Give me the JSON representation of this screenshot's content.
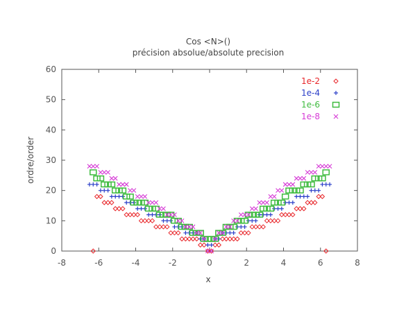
{
  "chart_data": {
    "type": "scatter",
    "title": "Cos <N>()",
    "subtitle": "précision absolue/absolute precision",
    "xlabel": "x",
    "ylabel": "ordre/order",
    "xlim": [
      -8,
      8
    ],
    "ylim": [
      0,
      60
    ],
    "xticks": [
      -8,
      -6,
      -4,
      -2,
      0,
      2,
      4,
      6,
      8
    ],
    "yticks": [
      0,
      10,
      20,
      30,
      40,
      50,
      60
    ],
    "grid": false,
    "legend_position": "top-right",
    "series": [
      {
        "name": "1e-2",
        "color": "#e8262a",
        "marker": "diamond",
        "points": [
          [
            -6.3,
            0
          ],
          [
            -6.1,
            18
          ],
          [
            -5.9,
            18
          ],
          [
            -5.7,
            16
          ],
          [
            -5.5,
            16
          ],
          [
            -5.3,
            16
          ],
          [
            -5.1,
            14
          ],
          [
            -4.9,
            14
          ],
          [
            -4.7,
            14
          ],
          [
            -4.5,
            12
          ],
          [
            -4.3,
            12
          ],
          [
            -4.1,
            12
          ],
          [
            -3.9,
            12
          ],
          [
            -3.7,
            10
          ],
          [
            -3.5,
            10
          ],
          [
            -3.3,
            10
          ],
          [
            -3.1,
            10
          ],
          [
            -2.9,
            8
          ],
          [
            -2.7,
            8
          ],
          [
            -2.5,
            8
          ],
          [
            -2.3,
            8
          ],
          [
            -2.1,
            6
          ],
          [
            -1.9,
            6
          ],
          [
            -1.7,
            6
          ],
          [
            -1.5,
            4
          ],
          [
            -1.3,
            4
          ],
          [
            -1.1,
            4
          ],
          [
            -0.9,
            4
          ],
          [
            -0.7,
            4
          ],
          [
            -0.5,
            2
          ],
          [
            -0.3,
            2
          ],
          [
            -0.1,
            0
          ],
          [
            0.1,
            0
          ],
          [
            0.3,
            2
          ],
          [
            0.5,
            2
          ],
          [
            0.7,
            4
          ],
          [
            0.9,
            4
          ],
          [
            1.1,
            4
          ],
          [
            1.3,
            4
          ],
          [
            1.5,
            4
          ],
          [
            1.7,
            6
          ],
          [
            1.9,
            6
          ],
          [
            2.1,
            6
          ],
          [
            2.3,
            8
          ],
          [
            2.5,
            8
          ],
          [
            2.7,
            8
          ],
          [
            2.9,
            8
          ],
          [
            3.1,
            10
          ],
          [
            3.3,
            10
          ],
          [
            3.5,
            10
          ],
          [
            3.7,
            10
          ],
          [
            3.9,
            12
          ],
          [
            4.1,
            12
          ],
          [
            4.3,
            12
          ],
          [
            4.5,
            12
          ],
          [
            4.7,
            14
          ],
          [
            4.9,
            14
          ],
          [
            5.1,
            14
          ],
          [
            5.3,
            16
          ],
          [
            5.5,
            16
          ],
          [
            5.7,
            16
          ],
          [
            5.9,
            18
          ],
          [
            6.1,
            18
          ],
          [
            6.3,
            0
          ]
        ]
      },
      {
        "name": "1e-4",
        "color": "#2a3ec8",
        "marker": "plus",
        "points": [
          [
            -6.5,
            22
          ],
          [
            -6.3,
            22
          ],
          [
            -6.1,
            22
          ],
          [
            -5.9,
            20
          ],
          [
            -5.7,
            20
          ],
          [
            -5.5,
            20
          ],
          [
            -5.3,
            18
          ],
          [
            -5.1,
            18
          ],
          [
            -4.9,
            18
          ],
          [
            -4.7,
            18
          ],
          [
            -4.5,
            16
          ],
          [
            -4.3,
            16
          ],
          [
            -4.1,
            16
          ],
          [
            -3.9,
            14
          ],
          [
            -3.7,
            14
          ],
          [
            -3.5,
            14
          ],
          [
            -3.3,
            12
          ],
          [
            -3.1,
            12
          ],
          [
            -2.9,
            12
          ],
          [
            -2.7,
            12
          ],
          [
            -2.5,
            10
          ],
          [
            -2.3,
            10
          ],
          [
            -2.1,
            10
          ],
          [
            -1.9,
            8
          ],
          [
            -1.7,
            8
          ],
          [
            -1.5,
            8
          ],
          [
            -1.3,
            6
          ],
          [
            -1.1,
            6
          ],
          [
            -0.9,
            6
          ],
          [
            -0.7,
            6
          ],
          [
            -0.5,
            4
          ],
          [
            -0.3,
            4
          ],
          [
            -0.1,
            2
          ],
          [
            0.1,
            2
          ],
          [
            0.3,
            4
          ],
          [
            0.5,
            4
          ],
          [
            0.7,
            6
          ],
          [
            0.9,
            6
          ],
          [
            1.1,
            6
          ],
          [
            1.3,
            6
          ],
          [
            1.5,
            8
          ],
          [
            1.7,
            8
          ],
          [
            1.9,
            8
          ],
          [
            2.1,
            10
          ],
          [
            2.3,
            10
          ],
          [
            2.5,
            10
          ],
          [
            2.7,
            12
          ],
          [
            2.9,
            12
          ],
          [
            3.1,
            12
          ],
          [
            3.3,
            12
          ],
          [
            3.5,
            14
          ],
          [
            3.7,
            14
          ],
          [
            3.9,
            14
          ],
          [
            4.1,
            16
          ],
          [
            4.3,
            16
          ],
          [
            4.5,
            16
          ],
          [
            4.7,
            18
          ],
          [
            4.9,
            18
          ],
          [
            5.1,
            18
          ],
          [
            5.3,
            18
          ],
          [
            5.5,
            20
          ],
          [
            5.7,
            20
          ],
          [
            5.9,
            20
          ],
          [
            6.1,
            22
          ],
          [
            6.3,
            22
          ],
          [
            6.5,
            22
          ]
        ]
      },
      {
        "name": "1e-6",
        "color": "#3fbb3f",
        "marker": "square",
        "points": [
          [
            -6.3,
            26
          ],
          [
            -6.1,
            24
          ],
          [
            -5.9,
            24
          ],
          [
            -5.7,
            22
          ],
          [
            -5.5,
            22
          ],
          [
            -5.3,
            22
          ],
          [
            -5.1,
            20
          ],
          [
            -4.9,
            20
          ],
          [
            -4.7,
            20
          ],
          [
            -4.5,
            18
          ],
          [
            -4.3,
            18
          ],
          [
            -4.1,
            16
          ],
          [
            -3.9,
            16
          ],
          [
            -3.7,
            16
          ],
          [
            -3.5,
            16
          ],
          [
            -3.3,
            14
          ],
          [
            -3.1,
            14
          ],
          [
            -2.9,
            14
          ],
          [
            -2.7,
            12
          ],
          [
            -2.5,
            12
          ],
          [
            -2.3,
            12
          ],
          [
            -2.1,
            12
          ],
          [
            -1.9,
            10
          ],
          [
            -1.7,
            10
          ],
          [
            -1.5,
            8
          ],
          [
            -1.3,
            8
          ],
          [
            -1.1,
            8
          ],
          [
            -0.9,
            6
          ],
          [
            -0.7,
            6
          ],
          [
            -0.5,
            6
          ],
          [
            -0.3,
            4
          ],
          [
            -0.1,
            4
          ],
          [
            0.1,
            4
          ],
          [
            0.3,
            4
          ],
          [
            0.5,
            6
          ],
          [
            0.7,
            6
          ],
          [
            0.9,
            8
          ],
          [
            1.1,
            8
          ],
          [
            1.3,
            8
          ],
          [
            1.5,
            10
          ],
          [
            1.7,
            10
          ],
          [
            1.9,
            10
          ],
          [
            2.1,
            12
          ],
          [
            2.3,
            12
          ],
          [
            2.5,
            12
          ],
          [
            2.7,
            12
          ],
          [
            2.9,
            14
          ],
          [
            3.1,
            14
          ],
          [
            3.3,
            14
          ],
          [
            3.5,
            16
          ],
          [
            3.7,
            16
          ],
          [
            3.9,
            16
          ],
          [
            4.1,
            18
          ],
          [
            4.3,
            20
          ],
          [
            4.5,
            20
          ],
          [
            4.7,
            20
          ],
          [
            4.9,
            20
          ],
          [
            5.1,
            22
          ],
          [
            5.3,
            22
          ],
          [
            5.5,
            22
          ],
          [
            5.7,
            24
          ],
          [
            5.9,
            24
          ],
          [
            6.1,
            24
          ],
          [
            6.3,
            26
          ]
        ]
      },
      {
        "name": "1e-8",
        "color": "#d63ad6",
        "marker": "cross",
        "points": [
          [
            -6.5,
            28
          ],
          [
            -6.3,
            28
          ],
          [
            -6.1,
            28
          ],
          [
            -5.9,
            26
          ],
          [
            -5.7,
            26
          ],
          [
            -5.5,
            26
          ],
          [
            -5.3,
            24
          ],
          [
            -5.1,
            24
          ],
          [
            -4.9,
            22
          ],
          [
            -4.7,
            22
          ],
          [
            -4.5,
            22
          ],
          [
            -4.3,
            20
          ],
          [
            -4.1,
            20
          ],
          [
            -3.9,
            18
          ],
          [
            -3.7,
            18
          ],
          [
            -3.5,
            18
          ],
          [
            -3.3,
            16
          ],
          [
            -3.1,
            16
          ],
          [
            -2.9,
            16
          ],
          [
            -2.7,
            14
          ],
          [
            -2.5,
            14
          ],
          [
            -2.3,
            12
          ],
          [
            -2.1,
            12
          ],
          [
            -1.9,
            12
          ],
          [
            -1.7,
            10
          ],
          [
            -1.5,
            10
          ],
          [
            -1.3,
            8
          ],
          [
            -1.1,
            8
          ],
          [
            -0.9,
            8
          ],
          [
            -0.7,
            6
          ],
          [
            -0.5,
            6
          ],
          [
            -0.3,
            4
          ],
          [
            -0.1,
            0
          ],
          [
            0.1,
            0
          ],
          [
            0.3,
            4
          ],
          [
            0.5,
            6
          ],
          [
            0.7,
            6
          ],
          [
            0.9,
            8
          ],
          [
            1.1,
            8
          ],
          [
            1.3,
            10
          ],
          [
            1.5,
            10
          ],
          [
            1.7,
            12
          ],
          [
            1.9,
            12
          ],
          [
            2.1,
            12
          ],
          [
            2.3,
            14
          ],
          [
            2.5,
            14
          ],
          [
            2.7,
            16
          ],
          [
            2.9,
            16
          ],
          [
            3.1,
            16
          ],
          [
            3.3,
            18
          ],
          [
            3.5,
            18
          ],
          [
            3.7,
            20
          ],
          [
            3.9,
            20
          ],
          [
            4.1,
            22
          ],
          [
            4.3,
            22
          ],
          [
            4.5,
            22
          ],
          [
            4.7,
            24
          ],
          [
            4.9,
            24
          ],
          [
            5.1,
            24
          ],
          [
            5.3,
            26
          ],
          [
            5.5,
            26
          ],
          [
            5.7,
            26
          ],
          [
            5.9,
            28
          ],
          [
            6.1,
            28
          ],
          [
            6.3,
            28
          ],
          [
            6.5,
            28
          ]
        ]
      }
    ]
  }
}
